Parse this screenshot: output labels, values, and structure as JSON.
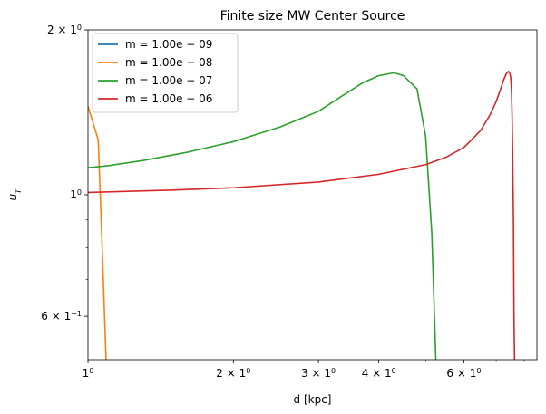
{
  "chart_data": {
    "type": "line",
    "title": "Finite size MW Center Source",
    "xlabel": "d [kpc]",
    "ylabel": "u_T",
    "xscale": "log",
    "yscale": "log",
    "xlim": [
      1.0,
      8.5
    ],
    "ylim": [
      0.5,
      2.0
    ],
    "grid": false,
    "legend_position": "top-left",
    "x_ticks": [
      {
        "value": 1,
        "mant": "1",
        "exp": "0"
      },
      {
        "value": 2,
        "mant": "2 × 1",
        "exp": "0"
      },
      {
        "value": 3,
        "mant": "3 × 1",
        "exp": "0"
      },
      {
        "value": 4,
        "mant": "4 × 1",
        "exp": "0"
      },
      {
        "value": 6,
        "mant": "6 × 1",
        "exp": "0"
      }
    ],
    "x_minor_ticks": [
      5,
      7,
      8
    ],
    "y_ticks": [
      {
        "value": 2.0,
        "mant": "2 × 1",
        "exp": "0"
      },
      {
        "value": 1.0,
        "mant": "1",
        "exp": "0"
      },
      {
        "value": 0.6,
        "mant": "6 × 1",
        "exp": "−1"
      }
    ],
    "y_minor_ticks": [
      0.7,
      0.8,
      0.9
    ],
    "series": [
      {
        "name": "m = 1.00e − 09",
        "color": "#1f77b4",
        "x": [],
        "y": []
      },
      {
        "name": "m = 1.00e − 08",
        "color": "#ff7f0e",
        "x": [
          1.0,
          1.05,
          1.07,
          1.09
        ],
        "y": [
          1.45,
          1.26,
          0.8,
          0.5
        ]
      },
      {
        "name": "m = 1.00e − 07",
        "color": "#2ca02c",
        "x": [
          1.0,
          1.1,
          1.3,
          1.6,
          2.0,
          2.5,
          3.0,
          3.3,
          3.7,
          4.0,
          4.3,
          4.5,
          4.8,
          5.0,
          5.15,
          5.25
        ],
        "y": [
          1.12,
          1.13,
          1.155,
          1.195,
          1.25,
          1.33,
          1.42,
          1.5,
          1.6,
          1.65,
          1.67,
          1.65,
          1.56,
          1.28,
          0.85,
          0.5
        ]
      },
      {
        "name": "m = 1.00e − 06",
        "color": "#d62728",
        "x": [
          1.0,
          1.5,
          2.0,
          3.0,
          4.0,
          5.0,
          5.5,
          6.0,
          6.5,
          6.8,
          7.0,
          7.15,
          7.25,
          7.35,
          7.42,
          7.46,
          7.5,
          7.53,
          7.55,
          7.57,
          7.6,
          7.62,
          7.64
        ],
        "y": [
          1.01,
          1.02,
          1.03,
          1.055,
          1.09,
          1.135,
          1.17,
          1.22,
          1.31,
          1.4,
          1.48,
          1.56,
          1.62,
          1.665,
          1.68,
          1.67,
          1.64,
          1.55,
          1.4,
          1.2,
          0.9,
          0.6,
          0.5
        ]
      }
    ]
  }
}
